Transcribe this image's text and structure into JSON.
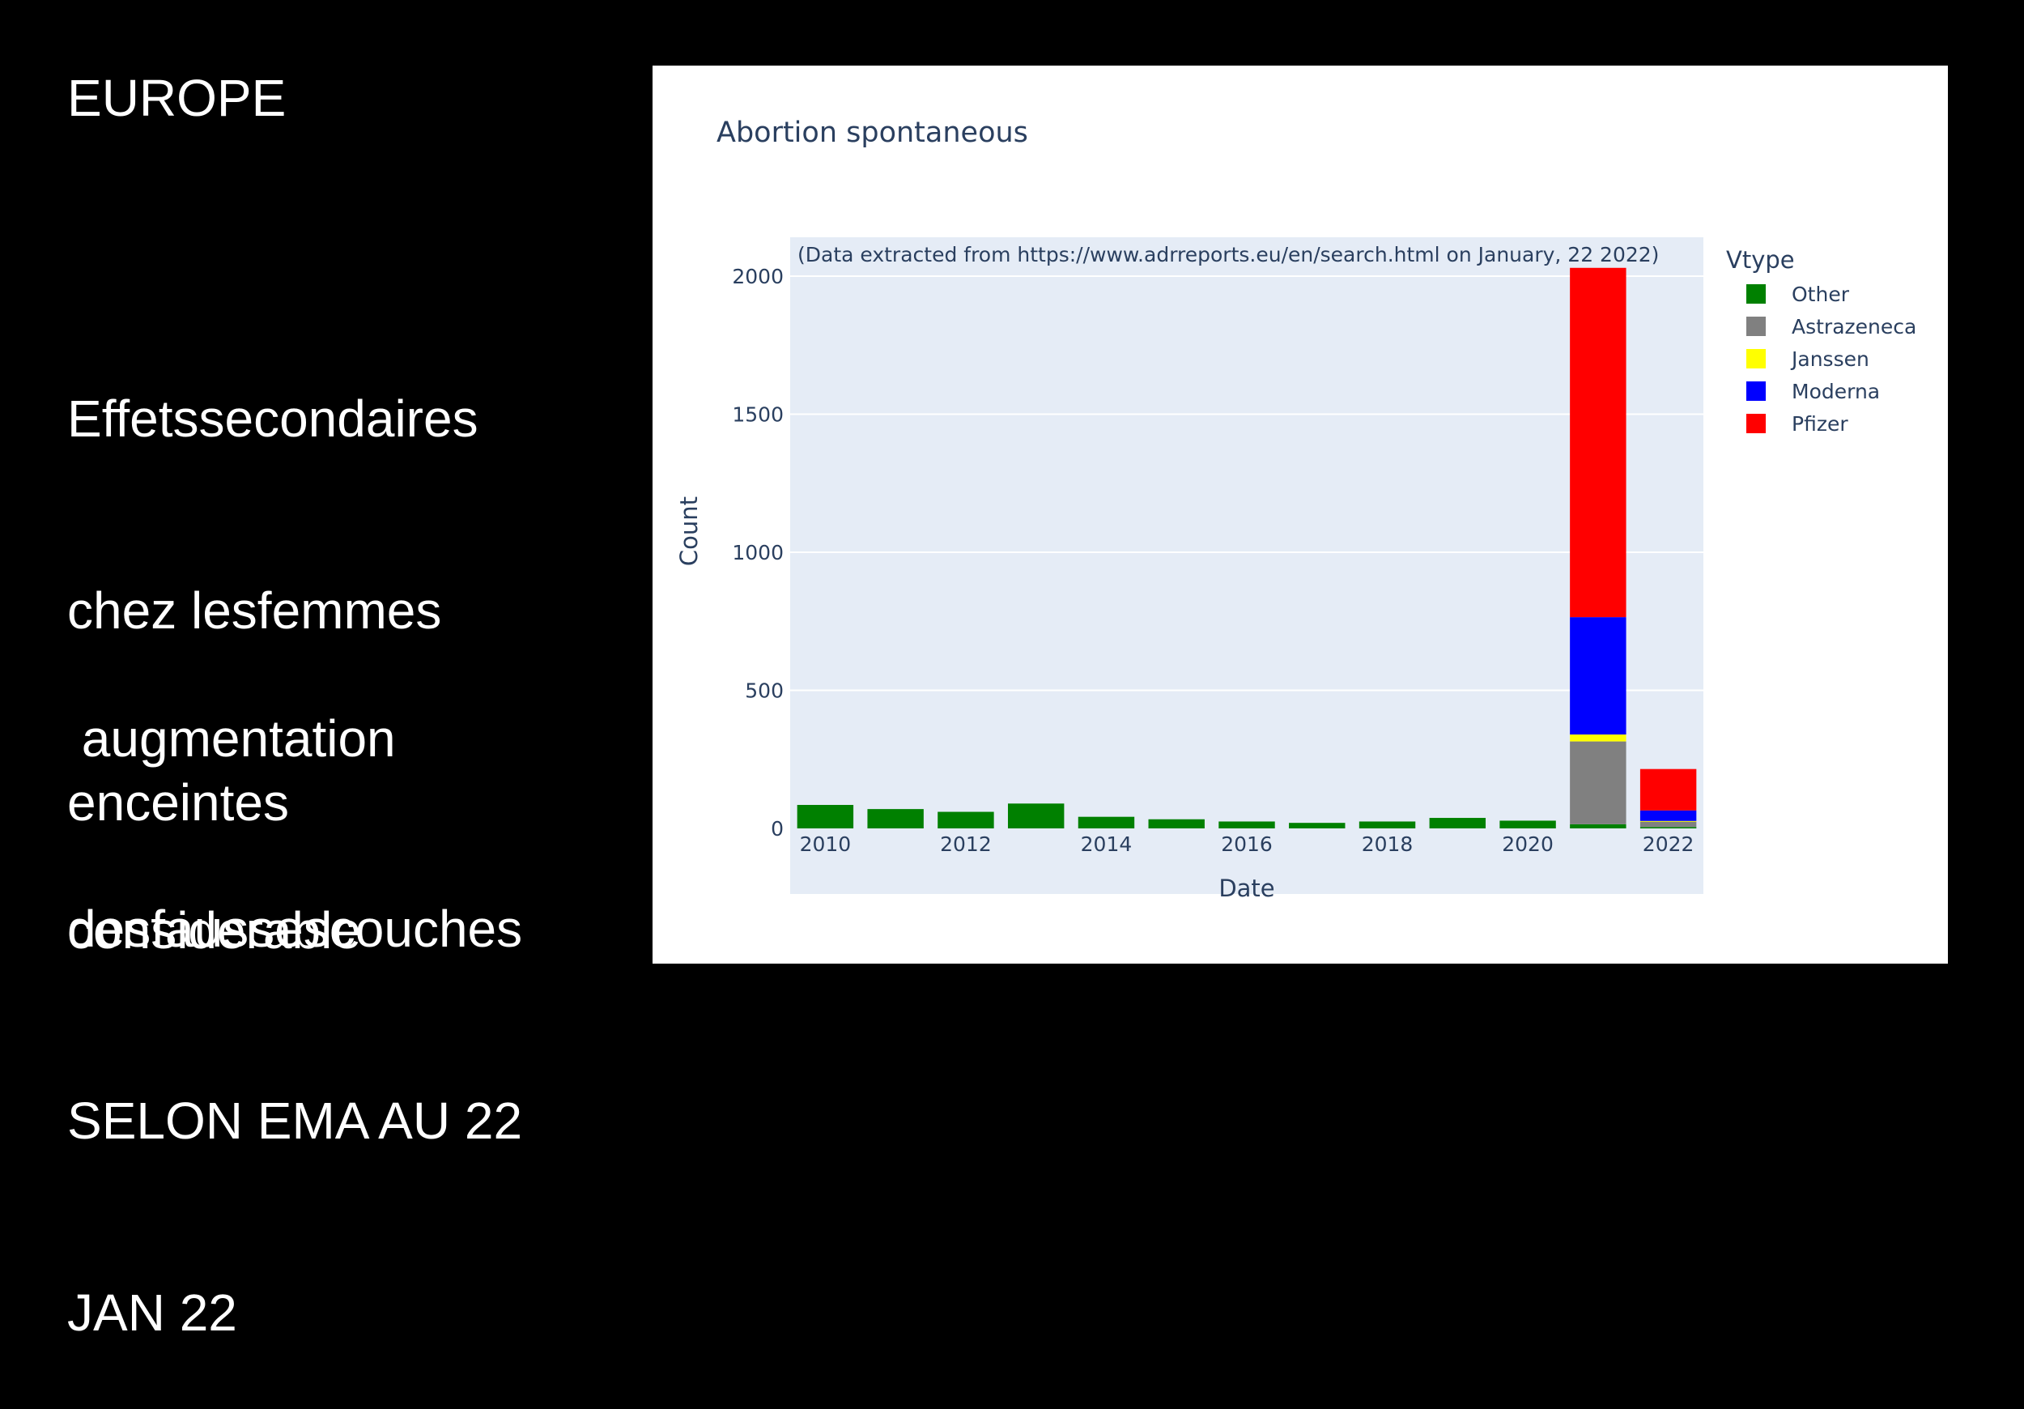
{
  "slide": {
    "heading": "EUROPE",
    "subtitle_lines": [
      "Effetssecondaires",
      "chez lesfemmes",
      "enceintes"
    ],
    "highlight_lines": [
      " augmentation",
      "considerable"
    ],
    "footer_lines": [
      "desfaussescouches",
      "SELON EMA AU 22",
      "JAN 22"
    ]
  },
  "chart_data": {
    "type": "bar",
    "barmode": "stack",
    "title": "Abortion spontaneous",
    "annotation": "(Data extracted from https://www.adrreports.eu/en/search.html on January, 22 2022)",
    "xlabel": "Date",
    "ylabel": "Count",
    "x": [
      2010,
      2011,
      2012,
      2013,
      2014,
      2015,
      2016,
      2017,
      2018,
      2019,
      2020,
      2021,
      2022
    ],
    "x_tick_labels": [
      "2010",
      "2012",
      "2014",
      "2016",
      "2018",
      "2020",
      "2022"
    ],
    "y_tick_labels": [
      "0",
      "500",
      "1000",
      "1500",
      "2000"
    ],
    "xlim": [
      2009.5,
      2022.5
    ],
    "ylim": [
      0,
      2035
    ],
    "grid": true,
    "legend": {
      "title": "Vtype",
      "placement": "right"
    },
    "series": [
      {
        "name": "Other",
        "color": "#008000",
        "values": [
          85,
          70,
          60,
          90,
          42,
          33,
          25,
          20,
          25,
          38,
          28,
          15,
          5
        ]
      },
      {
        "name": "Astrazeneca",
        "color": "#808080",
        "values": [
          0,
          0,
          0,
          0,
          0,
          0,
          0,
          0,
          0,
          0,
          0,
          300,
          20
        ]
      },
      {
        "name": "Janssen",
        "color": "#ffff00",
        "values": [
          0,
          0,
          0,
          0,
          0,
          0,
          0,
          0,
          0,
          0,
          0,
          25,
          2
        ]
      },
      {
        "name": "Moderna",
        "color": "#0000ff",
        "values": [
          0,
          0,
          0,
          0,
          0,
          0,
          0,
          0,
          0,
          0,
          0,
          425,
          38
        ]
      },
      {
        "name": "Pfizer",
        "color": "#ff0000",
        "values": [
          0,
          0,
          0,
          0,
          0,
          0,
          0,
          0,
          0,
          0,
          0,
          1265,
          150
        ]
      }
    ]
  }
}
